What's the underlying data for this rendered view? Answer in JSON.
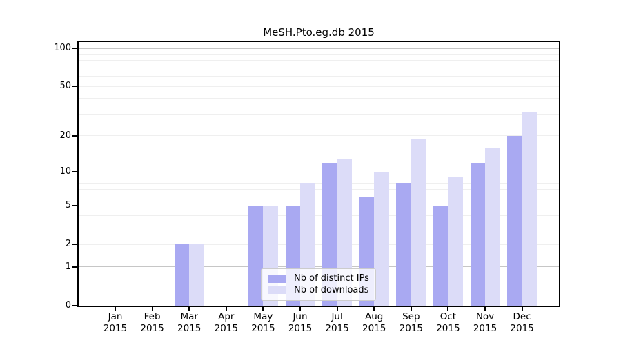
{
  "title": "MeSH.Pto.eg.db 2015",
  "colors": {
    "distinct_ips_bar": "#a9a9f2",
    "downloads_bar": "#dcdcf8",
    "major_gridline": "#c6c6c6",
    "minor_gridline": "#efefef",
    "axis_spine": "#000000"
  },
  "chart_data": {
    "type": "bar",
    "title": "MeSH.Pto.eg.db 2015",
    "xlabel": "",
    "ylabel": "",
    "y_scale": "log1p",
    "ylim": [
      0,
      112
    ],
    "grid": "horizontal",
    "legend_position": "inside lower-center",
    "categories": [
      "Jan 2015",
      "Feb 2015",
      "Mar 2015",
      "Apr 2015",
      "May 2015",
      "Jun 2015",
      "Jul 2015",
      "Aug 2015",
      "Sep 2015",
      "Oct 2015",
      "Nov 2015",
      "Dec 2015"
    ],
    "series": [
      {
        "name": "Nb of distinct IPs",
        "color": "#a9a9f2",
        "values": [
          0,
          0,
          2,
          0,
          5,
          5,
          12,
          6,
          8,
          5,
          12,
          20
        ]
      },
      {
        "name": "Nb of downloads",
        "color": "#dcdcf8",
        "values": [
          0,
          0,
          2,
          0,
          5,
          8,
          13,
          10,
          19,
          9,
          16,
          31
        ]
      }
    ],
    "y_tick_labels": [
      "0",
      "1",
      "2",
      "5",
      "10",
      "20",
      "50",
      "100"
    ],
    "y_tick_values": [
      0,
      1,
      2,
      5,
      10,
      20,
      50,
      100
    ],
    "gridlines": {
      "major": [
        1,
        10,
        100
      ],
      "minor": [
        2,
        3,
        4,
        5,
        6,
        7,
        8,
        9,
        20,
        30,
        40,
        50,
        60,
        70,
        80,
        90
      ]
    }
  }
}
